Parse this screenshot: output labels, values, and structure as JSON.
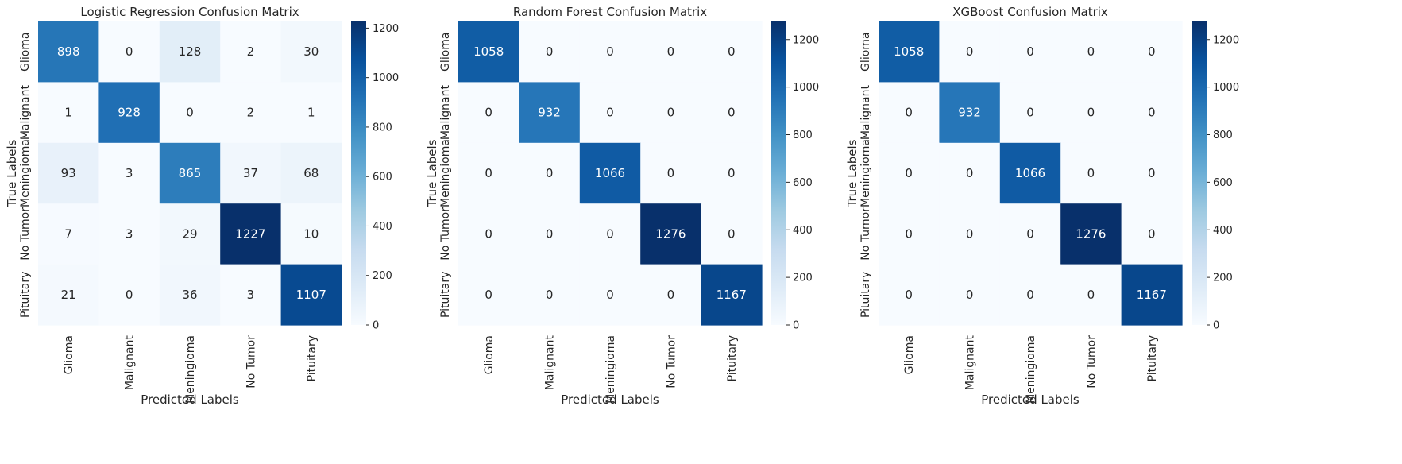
{
  "chart_data": [
    {
      "type": "heatmap",
      "title": "Logistic Regression Confusion Matrix",
      "xlabel": "Predicted Labels",
      "ylabel": "True Labels",
      "x_categories": [
        "Glioma",
        "Malignant",
        "Meningioma",
        "No Tumor",
        "Pituitary"
      ],
      "y_categories": [
        "Glioma",
        "Malignant",
        "Meningioma",
        "No Tumor",
        "Pituitary"
      ],
      "values": [
        [
          898,
          0,
          128,
          2,
          30
        ],
        [
          1,
          928,
          0,
          2,
          1
        ],
        [
          93,
          3,
          865,
          37,
          68
        ],
        [
          7,
          3,
          29,
          1227,
          10
        ],
        [
          21,
          0,
          36,
          3,
          1107
        ]
      ],
      "colorbar": {
        "min": 0,
        "max": 1227,
        "ticks": [
          0,
          200,
          400,
          600,
          800,
          1000,
          1200
        ]
      },
      "colormap": "Blues"
    },
    {
      "type": "heatmap",
      "title": "Random Forest Confusion Matrix",
      "xlabel": "Predicted Labels",
      "ylabel": "True Labels",
      "x_categories": [
        "Glioma",
        "Malignant",
        "Meningioma",
        "No Tumor",
        "Pituitary"
      ],
      "y_categories": [
        "Glioma",
        "Malignant",
        "Meningioma",
        "No Tumor",
        "Pituitary"
      ],
      "values": [
        [
          1058,
          0,
          0,
          0,
          0
        ],
        [
          0,
          932,
          0,
          0,
          0
        ],
        [
          0,
          0,
          1066,
          0,
          0
        ],
        [
          0,
          0,
          0,
          1276,
          0
        ],
        [
          0,
          0,
          0,
          0,
          1167
        ]
      ],
      "colorbar": {
        "min": 0,
        "max": 1276,
        "ticks": [
          0,
          200,
          400,
          600,
          800,
          1000,
          1200
        ]
      },
      "colormap": "Blues"
    },
    {
      "type": "heatmap",
      "title": "XGBoost Confusion Matrix",
      "xlabel": "Predicted Labels",
      "ylabel": "True Labels",
      "x_categories": [
        "Glioma",
        "Malignant",
        "Meningioma",
        "No Tumor",
        "Pituitary"
      ],
      "y_categories": [
        "Glioma",
        "Malignant",
        "Meningioma",
        "No Tumor",
        "Pituitary"
      ],
      "values": [
        [
          1058,
          0,
          0,
          0,
          0
        ],
        [
          0,
          932,
          0,
          0,
          0
        ],
        [
          0,
          0,
          1066,
          0,
          0
        ],
        [
          0,
          0,
          0,
          1276,
          0
        ],
        [
          0,
          0,
          0,
          0,
          1167
        ]
      ],
      "colorbar": {
        "min": 0,
        "max": 1276,
        "ticks": [
          0,
          200,
          400,
          600,
          800,
          1000,
          1200
        ]
      },
      "colormap": "Blues"
    }
  ]
}
